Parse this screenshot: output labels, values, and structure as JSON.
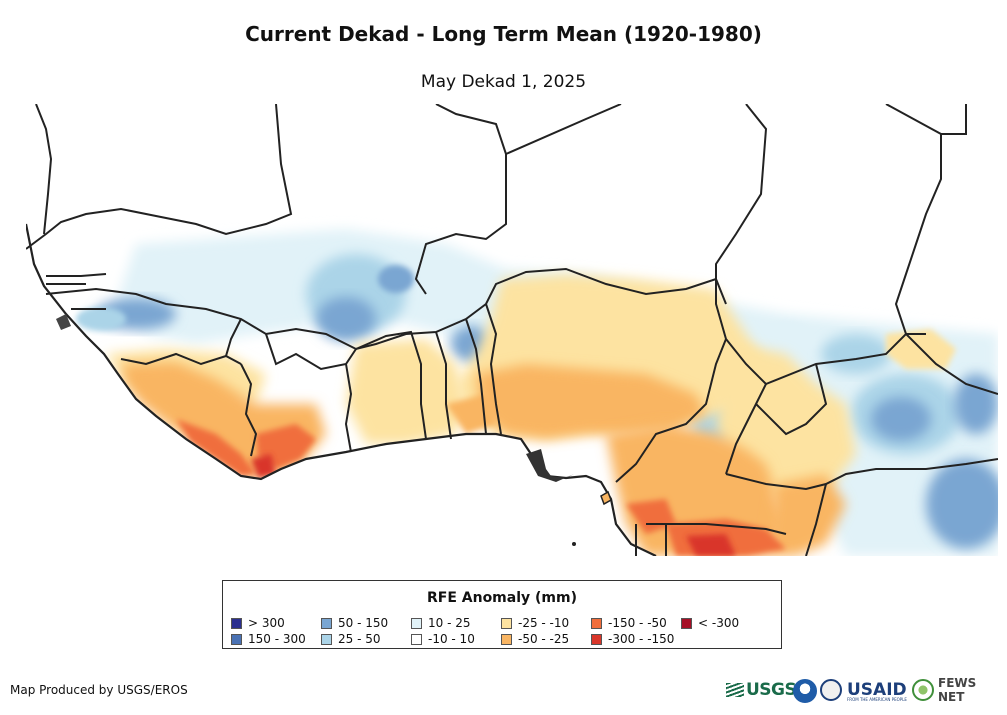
{
  "title": "Current Dekad - Long Term Mean (1920-1980)",
  "subtitle": "May Dekad 1, 2025",
  "map": {
    "region": "West and Central Africa",
    "variable": "Rainfall estimate anomaly",
    "background_color": "#ffffff",
    "border_color": "#222222"
  },
  "legend": {
    "title": "RFE Anomaly (mm)",
    "items": [
      {
        "label": "> 300",
        "color": "#2b2f8f"
      },
      {
        "label": "150 - 300",
        "color": "#4a72b4"
      },
      {
        "label": "50 - 150",
        "color": "#7aa6d2"
      },
      {
        "label": "25 - 50",
        "color": "#abd4e8"
      },
      {
        "label": "10 - 25",
        "color": "#e1f2f8"
      },
      {
        "label": "-10 - 10",
        "color": "#ffffff"
      },
      {
        "label": "-25 - -10",
        "color": "#fde3a1"
      },
      {
        "label": "-50 - -25",
        "color": "#f9b562"
      },
      {
        "label": "-150 - -50",
        "color": "#f06e3c"
      },
      {
        "label": "-300 - -150",
        "color": "#d9362a"
      },
      {
        "label": "< -300",
        "color": "#a50f26"
      }
    ]
  },
  "credit": "Map Produced by USGS/EROS",
  "logos": {
    "usgs": "USGS",
    "usaid": "USAID",
    "usaid_tagline": "FROM THE AMERICAN PEOPLE",
    "fews": "FEWS NET"
  }
}
